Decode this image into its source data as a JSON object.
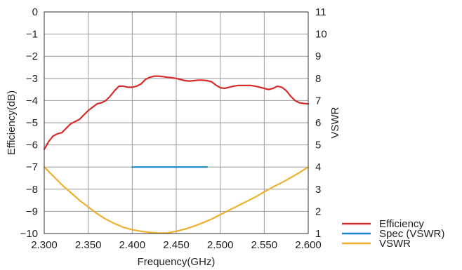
{
  "chart_data": {
    "type": "line",
    "xlabel": "Frequency(GHz)",
    "ylabel_left": "Efficiency(dB)",
    "ylabel_right": "VSWR",
    "xlim": [
      2.3,
      2.6
    ],
    "ylim_left": [
      -10,
      0
    ],
    "ylim_right": [
      1,
      11
    ],
    "x_ticks": [
      "2.300",
      "2.350",
      "2.400",
      "2.450",
      "2.500",
      "2.550",
      "2.600"
    ],
    "y_left_ticks": [
      "0",
      "−1",
      "−2",
      "−3",
      "−4",
      "−5",
      "−6",
      "−7",
      "−8",
      "−9",
      "−10"
    ],
    "y_right_ticks": [
      "11",
      "10",
      "9",
      "8",
      "7",
      "6",
      "5",
      "4",
      "3",
      "2",
      "1"
    ],
    "grid": true,
    "legend_position": "bottom-right outside",
    "series": [
      {
        "name": "Efficiency",
        "axis": "left",
        "color": "#d62b2b",
        "x": [
          2.3,
          2.305,
          2.31,
          2.315,
          2.32,
          2.325,
          2.33,
          2.335,
          2.34,
          2.345,
          2.35,
          2.355,
          2.36,
          2.365,
          2.37,
          2.375,
          2.38,
          2.385,
          2.39,
          2.395,
          2.4,
          2.405,
          2.41,
          2.415,
          2.42,
          2.425,
          2.43,
          2.435,
          2.44,
          2.445,
          2.45,
          2.455,
          2.46,
          2.465,
          2.47,
          2.475,
          2.48,
          2.485,
          2.49,
          2.495,
          2.5,
          2.505,
          2.51,
          2.515,
          2.52,
          2.525,
          2.53,
          2.535,
          2.54,
          2.545,
          2.55,
          2.555,
          2.56,
          2.565,
          2.57,
          2.575,
          2.58,
          2.585,
          2.59,
          2.595,
          2.6
        ],
        "values": [
          -6.2,
          -5.85,
          -5.6,
          -5.5,
          -5.45,
          -5.25,
          -5.05,
          -4.95,
          -4.85,
          -4.65,
          -4.45,
          -4.3,
          -4.15,
          -4.1,
          -4.0,
          -3.8,
          -3.55,
          -3.35,
          -3.35,
          -3.4,
          -3.4,
          -3.35,
          -3.25,
          -3.05,
          -2.95,
          -2.9,
          -2.9,
          -2.92,
          -2.95,
          -2.97,
          -3.0,
          -3.05,
          -3.1,
          -3.12,
          -3.1,
          -3.08,
          -3.08,
          -3.1,
          -3.15,
          -3.3,
          -3.42,
          -3.45,
          -3.4,
          -3.35,
          -3.32,
          -3.32,
          -3.32,
          -3.32,
          -3.35,
          -3.4,
          -3.45,
          -3.5,
          -3.45,
          -3.35,
          -3.4,
          -3.55,
          -3.8,
          -4.0,
          -4.1,
          -4.13,
          -4.15
        ]
      },
      {
        "name": "Spec (VSWR)",
        "axis": "right",
        "color": "#1a86c8",
        "x": [
          2.4,
          2.485
        ],
        "values": [
          4,
          4
        ]
      },
      {
        "name": "VSWR",
        "axis": "right",
        "color": "#eeb030",
        "x": [
          2.3,
          2.31,
          2.32,
          2.33,
          2.34,
          2.35,
          2.36,
          2.37,
          2.38,
          2.39,
          2.4,
          2.41,
          2.42,
          2.43,
          2.44,
          2.45,
          2.46,
          2.47,
          2.48,
          2.49,
          2.5,
          2.51,
          2.52,
          2.53,
          2.54,
          2.55,
          2.56,
          2.57,
          2.58,
          2.59,
          2.6
        ],
        "values": [
          4.0,
          3.6,
          3.2,
          2.85,
          2.5,
          2.2,
          1.9,
          1.65,
          1.45,
          1.28,
          1.17,
          1.1,
          1.05,
          1.02,
          1.03,
          1.1,
          1.2,
          1.33,
          1.48,
          1.65,
          1.85,
          2.05,
          2.25,
          2.45,
          2.65,
          2.88,
          3.1,
          3.3,
          3.52,
          3.75,
          4.0
        ]
      }
    ]
  }
}
